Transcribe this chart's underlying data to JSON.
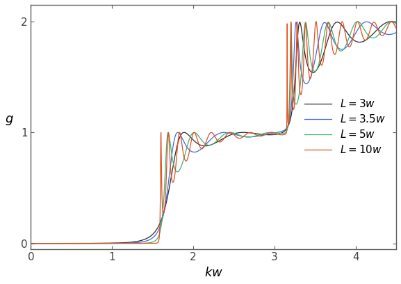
{
  "title": "",
  "xlabel": "$kw$",
  "ylabel": "$g$",
  "xlim": [
    0,
    4.5
  ],
  "ylim": [
    -0.05,
    2.15
  ],
  "xticks": [
    0,
    1,
    2,
    3,
    4
  ],
  "yticks": [
    0,
    1,
    2
  ],
  "kw_min": 0.001,
  "kw_max": 4.5,
  "kw_points": 8000,
  "L_values": [
    3.0,
    3.5,
    5.0,
    10.0
  ],
  "colors": [
    "#2b2b2b",
    "#4169e1",
    "#3cb371",
    "#e05020"
  ],
  "labels": [
    "$L = 3w$",
    "$L = 3.5w$",
    "$L = 5w$",
    "$L = 10w$"
  ],
  "linewidth": 0.9,
  "legend_loc": "center right",
  "figsize": [
    5.77,
    4.08
  ],
  "dpi": 100,
  "N_modes": 2,
  "cutoff_factors": [
    0.5,
    1.0
  ]
}
